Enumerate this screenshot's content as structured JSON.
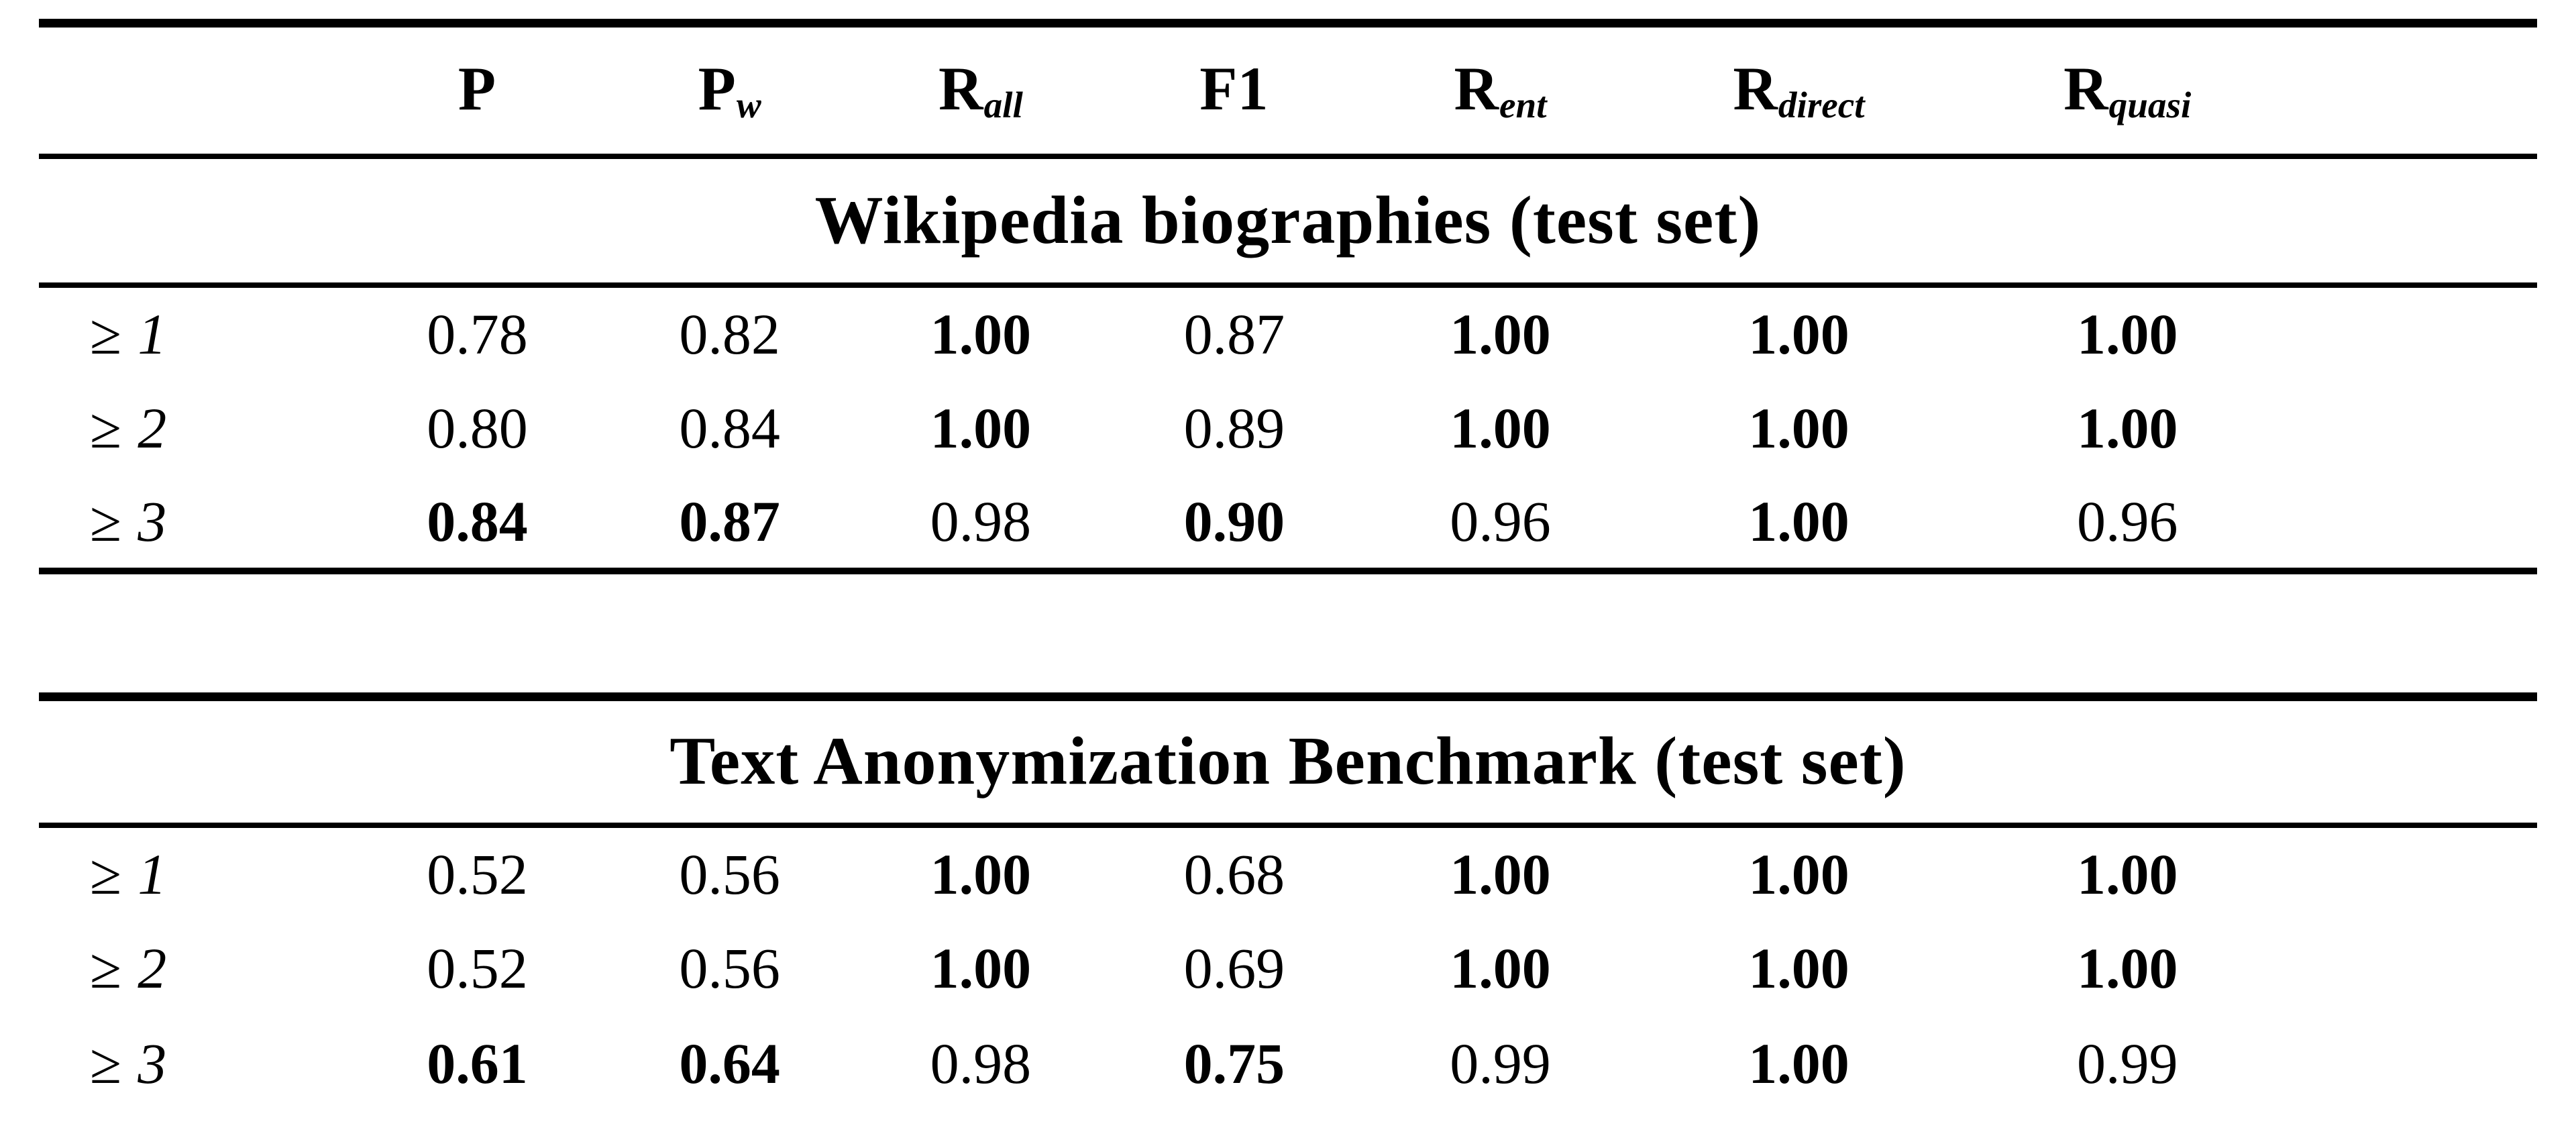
{
  "header": {
    "row_label": "",
    "columns": [
      {
        "base": "P",
        "sub": ""
      },
      {
        "base": "P",
        "sub": "w"
      },
      {
        "base": "R",
        "sub": "all"
      },
      {
        "base": "F1",
        "sub": ""
      },
      {
        "base": "R",
        "sub": "ent"
      },
      {
        "base": "R",
        "sub": "direct"
      },
      {
        "base": "R",
        "sub": "quasi"
      }
    ]
  },
  "sections": [
    {
      "title": "Wikipedia biographies (test set)",
      "rows": [
        {
          "sym": "≥",
          "threshold": "1",
          "cells": [
            {
              "v": "0.78",
              "b": false
            },
            {
              "v": "0.82",
              "b": false
            },
            {
              "v": "1.00",
              "b": true
            },
            {
              "v": "0.87",
              "b": false
            },
            {
              "v": "1.00",
              "b": true
            },
            {
              "v": "1.00",
              "b": true
            },
            {
              "v": "1.00",
              "b": true
            }
          ]
        },
        {
          "sym": "≥",
          "threshold": "2",
          "cells": [
            {
              "v": "0.80",
              "b": false
            },
            {
              "v": "0.84",
              "b": false
            },
            {
              "v": "1.00",
              "b": true
            },
            {
              "v": "0.89",
              "b": false
            },
            {
              "v": "1.00",
              "b": true
            },
            {
              "v": "1.00",
              "b": true
            },
            {
              "v": "1.00",
              "b": true
            }
          ]
        },
        {
          "sym": "≥",
          "threshold": "3",
          "cells": [
            {
              "v": "0.84",
              "b": true
            },
            {
              "v": "0.87",
              "b": true
            },
            {
              "v": "0.98",
              "b": false
            },
            {
              "v": "0.90",
              "b": true
            },
            {
              "v": "0.96",
              "b": false
            },
            {
              "v": "1.00",
              "b": true
            },
            {
              "v": "0.96",
              "b": false
            }
          ]
        }
      ]
    },
    {
      "title": "Text Anonymization Benchmark (test set)",
      "rows": [
        {
          "sym": "≥",
          "threshold": "1",
          "cells": [
            {
              "v": "0.52",
              "b": false
            },
            {
              "v": "0.56",
              "b": false
            },
            {
              "v": "1.00",
              "b": true
            },
            {
              "v": "0.68",
              "b": false
            },
            {
              "v": "1.00",
              "b": true
            },
            {
              "v": "1.00",
              "b": true
            },
            {
              "v": "1.00",
              "b": true
            }
          ]
        },
        {
          "sym": "≥",
          "threshold": "2",
          "cells": [
            {
              "v": "0.52",
              "b": false
            },
            {
              "v": "0.56",
              "b": false
            },
            {
              "v": "1.00",
              "b": true
            },
            {
              "v": "0.69",
              "b": false
            },
            {
              "v": "1.00",
              "b": true
            },
            {
              "v": "1.00",
              "b": true
            },
            {
              "v": "1.00",
              "b": true
            }
          ]
        },
        {
          "sym": "≥",
          "threshold": "3",
          "cells": [
            {
              "v": "0.61",
              "b": true
            },
            {
              "v": "0.64",
              "b": true
            },
            {
              "v": "0.98",
              "b": false
            },
            {
              "v": "0.75",
              "b": true
            },
            {
              "v": "0.99",
              "b": false
            },
            {
              "v": "1.00",
              "b": true
            },
            {
              "v": "0.99",
              "b": false
            }
          ]
        }
      ]
    }
  ]
}
